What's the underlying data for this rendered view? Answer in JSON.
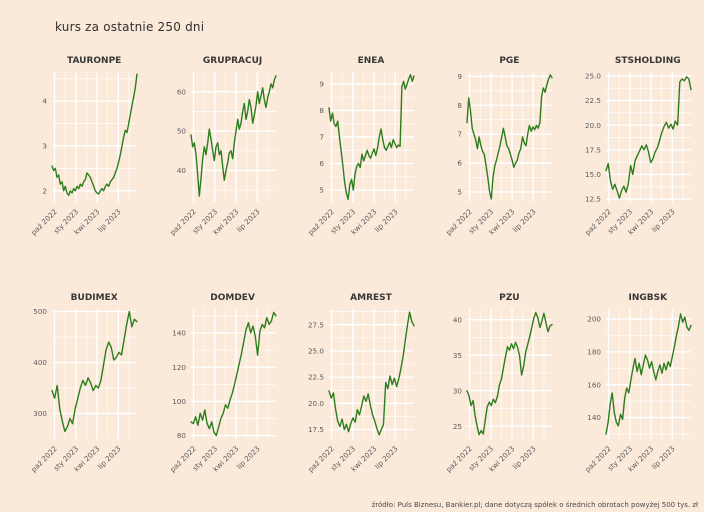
{
  "page": {
    "title": "kurs za ostatnie 250 dni",
    "footer": "źródło: Puls Biznesu, Bankier.pl; dane dotyczą spółek o średnich obrotach powyżej 500 tys. zł",
    "colors": {
      "background": "#fbe9da",
      "line": "#2d7d1e",
      "grid": "#ffffff",
      "tick_label": "#5c5c5c",
      "title_text": "#383838"
    }
  },
  "chart_data": [
    {
      "type": "line",
      "title": "TAURONPE",
      "x_tick_labels": [
        "paź 2022",
        "sty 2023",
        "kwi 2023",
        "lip 2023"
      ],
      "x_tick_pos": [
        0.03,
        0.28,
        0.53,
        0.78
      ],
      "x_minor_pos": [
        0.155,
        0.405,
        0.655,
        0.905
      ],
      "y_tick_labels": [
        "2",
        "3",
        "4"
      ],
      "y_tick_values": [
        2,
        3,
        4
      ],
      "ylim": [
        1.75,
        4.65
      ],
      "values": [
        2.55,
        2.45,
        2.5,
        2.3,
        2.35,
        2.15,
        2.2,
        2.0,
        2.1,
        1.95,
        1.9,
        2.0,
        1.95,
        2.05,
        2.0,
        2.1,
        2.05,
        2.15,
        2.1,
        2.2,
        2.25,
        2.4,
        2.35,
        2.3,
        2.2,
        2.1,
        2.0,
        1.95,
        1.93,
        2.0,
        2.05,
        2.0,
        2.1,
        2.15,
        2.1,
        2.2,
        2.25,
        2.3,
        2.4,
        2.5,
        2.65,
        2.8,
        3.0,
        3.2,
        3.35,
        3.3,
        3.5,
        3.7,
        3.9,
        4.1,
        4.3,
        4.6
      ]
    },
    {
      "type": "line",
      "title": "GRUPRACUJ",
      "x_tick_labels": [
        "paź 2022",
        "sty 2023",
        "kwi 2023",
        "lip 2023"
      ],
      "x_tick_pos": [
        0.03,
        0.28,
        0.53,
        0.78
      ],
      "x_minor_pos": [
        0.155,
        0.405,
        0.655,
        0.905
      ],
      "y_tick_labels": [
        "40",
        "50",
        "60"
      ],
      "y_tick_values": [
        40,
        50,
        60
      ],
      "ylim": [
        32,
        65
      ],
      "values": [
        49,
        46,
        47,
        44,
        39,
        33.5,
        38,
        43,
        46,
        44,
        47,
        50.5,
        48,
        45,
        42.5,
        46,
        47,
        44,
        45,
        41,
        37.5,
        40,
        42,
        44.5,
        45,
        43,
        47,
        50,
        53,
        50.5,
        52,
        55,
        57,
        53,
        55,
        58,
        56,
        52,
        54,
        56.5,
        60,
        57,
        59,
        61,
        58,
        56,
        58.5,
        60,
        62,
        61,
        63,
        64
      ]
    },
    {
      "type": "line",
      "title": "ENEA",
      "x_tick_labels": [
        "paź 2022",
        "sty 2023",
        "kwi 2023",
        "lip 2023"
      ],
      "x_tick_pos": [
        0.03,
        0.28,
        0.53,
        0.78
      ],
      "x_minor_pos": [
        0.155,
        0.405,
        0.655,
        0.905
      ],
      "y_tick_labels": [
        "5",
        "6",
        "7",
        "8",
        "9"
      ],
      "y_tick_values": [
        5,
        6,
        7,
        8,
        9
      ],
      "ylim": [
        4.55,
        9.45
      ],
      "values": [
        8.1,
        7.6,
        7.9,
        7.5,
        7.4,
        7.6,
        7.0,
        6.5,
        5.9,
        5.3,
        4.9,
        4.65,
        5.2,
        5.4,
        5.0,
        5.6,
        5.9,
        6.0,
        5.85,
        6.35,
        6.1,
        6.3,
        6.5,
        6.3,
        6.2,
        6.4,
        6.55,
        6.3,
        6.6,
        7.0,
        7.3,
        6.9,
        6.6,
        6.5,
        6.65,
        6.8,
        6.6,
        6.9,
        6.75,
        6.6,
        6.7,
        6.65,
        8.9,
        9.1,
        8.8,
        9.0,
        9.2,
        9.35,
        9.1,
        9.3
      ]
    },
    {
      "type": "line",
      "title": "PGE",
      "x_tick_labels": [
        "paź 2022",
        "sty 2023",
        "kwi 2023",
        "lip 2023"
      ],
      "x_tick_pos": [
        0.03,
        0.28,
        0.53,
        0.78
      ],
      "x_minor_pos": [
        0.155,
        0.405,
        0.655,
        0.905
      ],
      "y_tick_labels": [
        "5",
        "6",
        "7",
        "8",
        "9"
      ],
      "y_tick_values": [
        5,
        6,
        7,
        8,
        9
      ],
      "ylim": [
        4.65,
        9.15
      ],
      "values": [
        7.4,
        8.25,
        7.8,
        7.2,
        7.0,
        6.8,
        6.5,
        6.9,
        6.6,
        6.4,
        6.3,
        5.9,
        5.5,
        5.0,
        4.75,
        5.5,
        5.9,
        6.1,
        6.35,
        6.6,
        6.9,
        7.2,
        6.9,
        6.6,
        6.5,
        6.3,
        6.1,
        5.85,
        6.0,
        6.1,
        6.35,
        6.5,
        6.9,
        6.7,
        6.6,
        7.0,
        7.3,
        7.1,
        7.25,
        7.15,
        7.3,
        7.2,
        7.4,
        8.3,
        8.6,
        8.45,
        8.7,
        8.9,
        9.05,
        8.95
      ]
    },
    {
      "type": "line",
      "title": "STSHOLDING",
      "x_tick_labels": [
        "paź 2022",
        "sty 2023",
        "kwi 2023",
        "lip 2023"
      ],
      "x_tick_pos": [
        0.03,
        0.28,
        0.53,
        0.78
      ],
      "x_minor_pos": [
        0.155,
        0.405,
        0.655,
        0.905
      ],
      "y_tick_labels": [
        "12.5",
        "15.0",
        "17.5",
        "20.0",
        "22.5",
        "25.0"
      ],
      "y_tick_values": [
        12.5,
        15,
        17.5,
        20,
        22.5,
        25
      ],
      "ylim": [
        12.2,
        25.4
      ],
      "values": [
        15.4,
        16.1,
        14.3,
        13.5,
        14.0,
        13.3,
        12.6,
        13.4,
        13.8,
        13.2,
        14.1,
        15.9,
        15.0,
        16.4,
        16.9,
        17.4,
        17.9,
        17.5,
        18.0,
        17.3,
        16.2,
        16.6,
        17.3,
        17.7,
        18.5,
        19.3,
        19.9,
        20.3,
        19.7,
        20.1,
        19.6,
        20.4,
        20.0,
        24.4,
        24.7,
        24.5,
        24.9,
        24.7,
        23.6
      ]
    },
    {
      "type": "line",
      "title": "BUDIMEX",
      "x_tick_labels": [
        "paź 2022",
        "sty 2023",
        "kwi 2023",
        "lip 2023"
      ],
      "x_tick_pos": [
        0.03,
        0.28,
        0.53,
        0.78
      ],
      "x_minor_pos": [
        0.155,
        0.405,
        0.655,
        0.905
      ],
      "y_tick_labels": [
        "300",
        "400",
        "500"
      ],
      "y_tick_values": [
        300,
        400,
        500
      ],
      "ylim": [
        250,
        505
      ],
      "values": [
        345,
        330,
        355,
        310,
        285,
        265,
        275,
        290,
        280,
        310,
        330,
        350,
        365,
        355,
        370,
        360,
        345,
        355,
        350,
        365,
        395,
        425,
        440,
        430,
        405,
        410,
        420,
        415,
        445,
        475,
        500,
        470,
        485,
        480
      ]
    },
    {
      "type": "line",
      "title": "DOMDEV",
      "x_tick_labels": [
        "paź 2022",
        "sty 2023",
        "kwi 2023",
        "lip 2023"
      ],
      "x_tick_pos": [
        0.03,
        0.28,
        0.53,
        0.78
      ],
      "x_minor_pos": [
        0.155,
        0.405,
        0.655,
        0.905
      ],
      "y_tick_labels": [
        "80",
        "100",
        "120",
        "140"
      ],
      "y_tick_values": [
        80,
        100,
        120,
        140
      ],
      "ylim": [
        78,
        154
      ],
      "values": [
        88,
        87,
        91,
        86,
        93,
        89,
        95,
        87,
        84,
        88,
        82,
        80,
        85,
        90,
        93,
        98,
        96,
        101,
        105,
        110,
        116,
        122,
        128,
        135,
        142,
        146,
        140,
        144,
        138,
        127,
        141,
        145,
        143,
        149,
        145,
        147,
        152,
        150
      ]
    },
    {
      "type": "line",
      "title": "AMREST",
      "x_tick_labels": [
        "paź 2022",
        "sty 2023",
        "kwi 2023",
        "lip 2023"
      ],
      "x_tick_pos": [
        0.03,
        0.28,
        0.53,
        0.78
      ],
      "x_minor_pos": [
        0.155,
        0.405,
        0.655,
        0.905
      ],
      "y_tick_labels": [
        "17.5",
        "20.0",
        "22.5",
        "25.0",
        "27.5"
      ],
      "y_tick_values": [
        17.5,
        20,
        22.5,
        25,
        27.5
      ],
      "ylim": [
        16.6,
        29
      ],
      "values": [
        21.2,
        20.5,
        21.0,
        19.5,
        18.3,
        17.8,
        18.5,
        17.5,
        18.0,
        17.3,
        18.1,
        18.6,
        18.2,
        19.4,
        18.9,
        19.8,
        20.7,
        20.2,
        20.9,
        19.8,
        18.9,
        18.3,
        17.6,
        17.0,
        17.5,
        18.0,
        22.0,
        21.4,
        22.6,
        21.8,
        22.4,
        21.6,
        22.3,
        23.3,
        24.5,
        26.0,
        27.5,
        28.7,
        27.8,
        27.4
      ]
    },
    {
      "type": "line",
      "title": "PZU",
      "x_tick_labels": [
        "paź 2022",
        "sty 2023",
        "kwi 2023",
        "lip 2023"
      ],
      "x_tick_pos": [
        0.03,
        0.28,
        0.53,
        0.78
      ],
      "x_minor_pos": [
        0.155,
        0.405,
        0.655,
        0.905
      ],
      "y_tick_labels": [
        "25",
        "30",
        "35",
        "40"
      ],
      "y_tick_values": [
        25,
        30,
        35,
        40
      ],
      "ylim": [
        23.2,
        41.5
      ],
      "values": [
        30.0,
        29.3,
        27.9,
        28.6,
        26.5,
        25.0,
        23.8,
        24.4,
        23.9,
        25.8,
        27.7,
        28.4,
        27.9,
        28.8,
        28.3,
        29.2,
        30.8,
        31.6,
        33.2,
        34.8,
        36.2,
        35.7,
        36.6,
        35.9,
        36.8,
        36.1,
        34.9,
        32.2,
        33.5,
        35.4,
        36.5,
        37.6,
        38.9,
        40.2,
        41.0,
        40.3,
        38.9,
        39.8,
        40.9,
        39.6,
        38.3,
        39.1,
        39.3
      ]
    },
    {
      "type": "line",
      "title": "INGBSK",
      "x_tick_labels": [
        "paź 2022",
        "sty 2023",
        "kwi 2023",
        "lip 2023"
      ],
      "x_tick_pos": [
        0.03,
        0.28,
        0.53,
        0.78
      ],
      "x_minor_pos": [
        0.155,
        0.405,
        0.655,
        0.905
      ],
      "y_tick_labels": [
        "140",
        "160",
        "180",
        "200"
      ],
      "y_tick_values": [
        140,
        160,
        180,
        200
      ],
      "ylim": [
        127,
        206
      ],
      "values": [
        130,
        137,
        148,
        155,
        143,
        137,
        135,
        142,
        139,
        152,
        158,
        155,
        163,
        170,
        176,
        168,
        173,
        166,
        172,
        178,
        175,
        170,
        174,
        168,
        163,
        168,
        172,
        167,
        173,
        169,
        174,
        171,
        177,
        183,
        190,
        196,
        203,
        198,
        201,
        195,
        193,
        196
      ]
    }
  ]
}
